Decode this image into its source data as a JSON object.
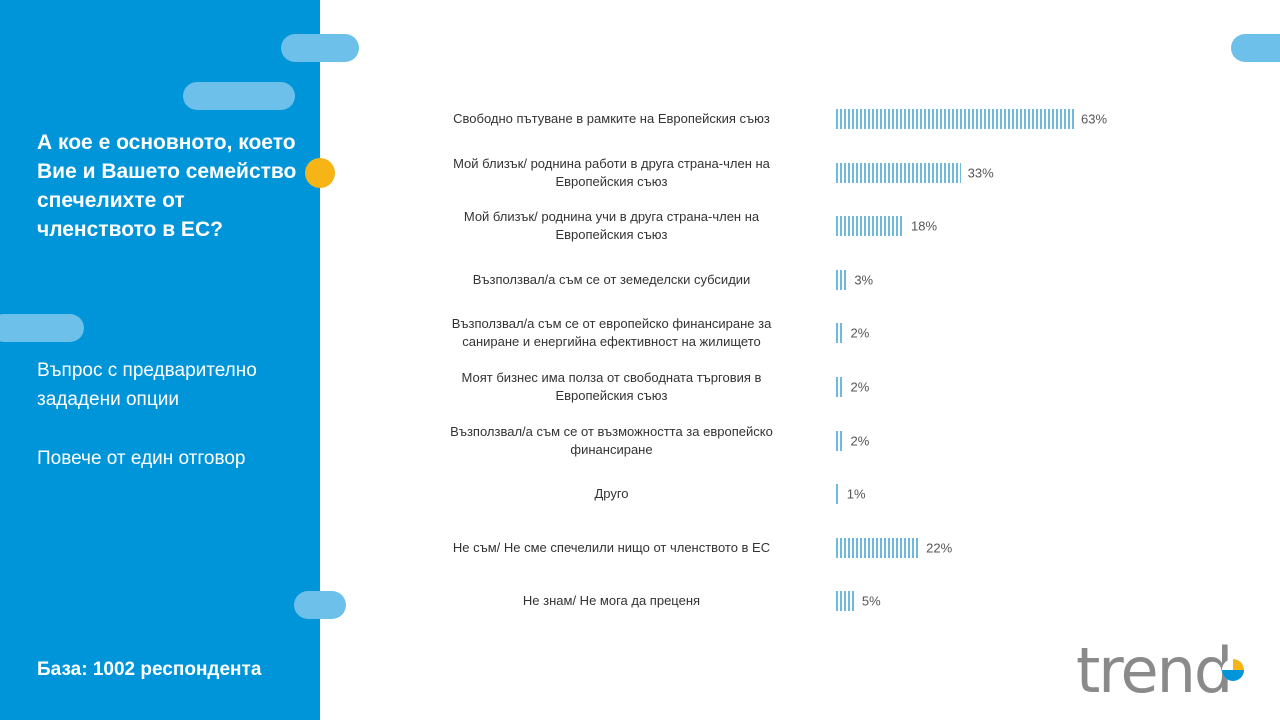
{
  "panel": {
    "question": "А кое е основното, което Вие и Вашето семейство спечелихте от членството в ЕС?",
    "note_1": "Въпрос с предварително зададени опции",
    "note_2": "Повече от един отговор",
    "base": "База: 1002 респондента"
  },
  "colors": {
    "panel": "#0095d9",
    "pill": "#6cc0ea",
    "dot": "#f6b416",
    "bar": "#6fb9dd"
  },
  "logo": {
    "text": "trend"
  },
  "chart_data": {
    "type": "bar",
    "orientation": "horizontal",
    "categories": [
      "Свободно пътуване в рамките на Европейския съюз",
      "Мой близък/ роднина работи в друга страна-член на Европейския съюз",
      "Мой близък/ роднина учи в друга страна-член на Европейския съюз",
      "Възползвал/а съм се от земеделски субсидии",
      "Възползвал/а съм се от европейско финансиране за саниране и енергийна ефективност на жилището",
      "Моят бизнес има полза от свободната търговия в Европейския съюз",
      "Възползвал/а съм се от възможността за европейско финансиране",
      "Друго",
      "Не съм/ Не сме спечелили нищо от членството в ЕС",
      "Не знам/ Не мога да преценя"
    ],
    "values": [
      63,
      33,
      18,
      3,
      2,
      2,
      2,
      1,
      22,
      5
    ],
    "value_labels": [
      "63%",
      "33%",
      "18%",
      "3%",
      "2%",
      "2%",
      "2%",
      "1%",
      "22%",
      "5%"
    ],
    "xlim": [
      0,
      100
    ],
    "grid": false
  }
}
